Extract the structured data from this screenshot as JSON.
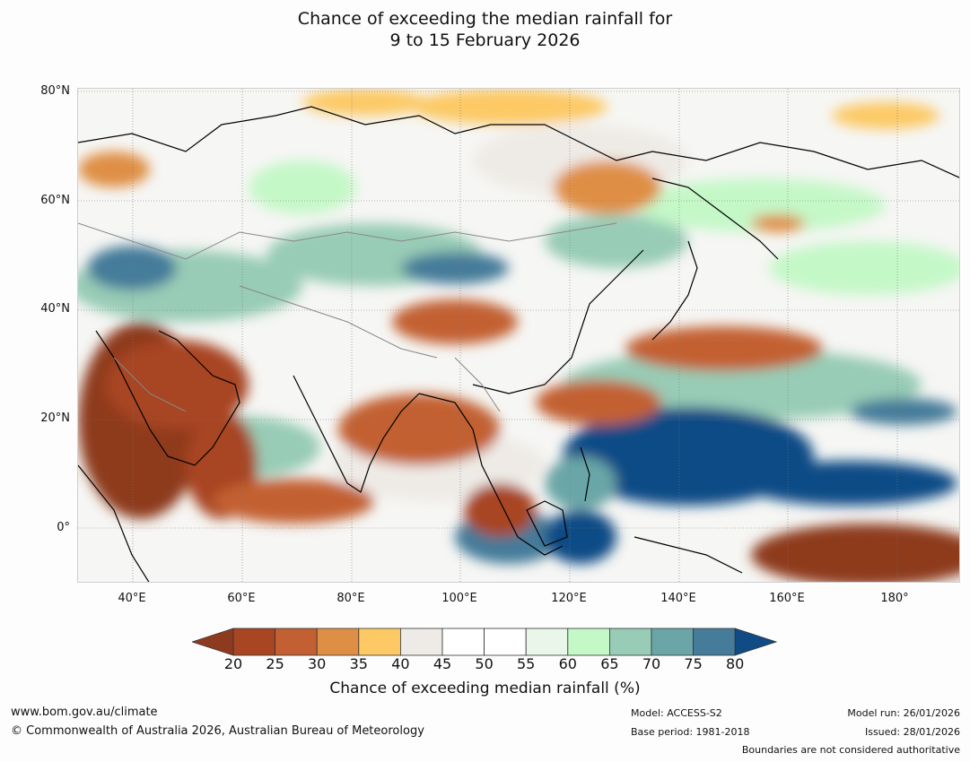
{
  "title": {
    "line1": "Chance of exceeding the median rainfall for",
    "line2": "9 to 15 February 2026"
  },
  "map": {
    "lat_labels": [
      "80°N",
      "60°N",
      "40°N",
      "20°N",
      "0°"
    ],
    "lon_labels": [
      "40°E",
      "60°E",
      "80°E",
      "100°E",
      "120°E",
      "140°E",
      "160°E",
      "180°"
    ],
    "extent": {
      "lon_min": 30,
      "lon_max": 192,
      "lat_min": -10,
      "lat_max": 80
    }
  },
  "colorbar": {
    "title": "Chance of exceeding median rainfall (%)",
    "tick_labels": [
      "20",
      "25",
      "30",
      "35",
      "40",
      "45",
      "50",
      "55",
      "60",
      "65",
      "70",
      "75",
      "80"
    ],
    "under_color": "#8e3a1e",
    "over_color": "#104b86",
    "colors": [
      "#a84522",
      "#c36033",
      "#df8f45",
      "#fcc965",
      "#eeebe6",
      "#ffffff",
      "#ffffff",
      "#e9f6e9",
      "#c4f8c7",
      "#98ccb6",
      "#6aa6a7",
      "#457c9a"
    ]
  },
  "footer": {
    "website": "www.bom.gov.au/climate",
    "copyright": "© Commonwealth of Australia 2026, Australian Bureau of Meteorology",
    "model": "Model: ACCESS-S2",
    "base_period": "Base period: 1981-2018",
    "model_run": "Model run: 26/01/2026",
    "issued": "Issued: 28/01/2026",
    "disclaimer": "Boundaries are not considered authoritative"
  }
}
